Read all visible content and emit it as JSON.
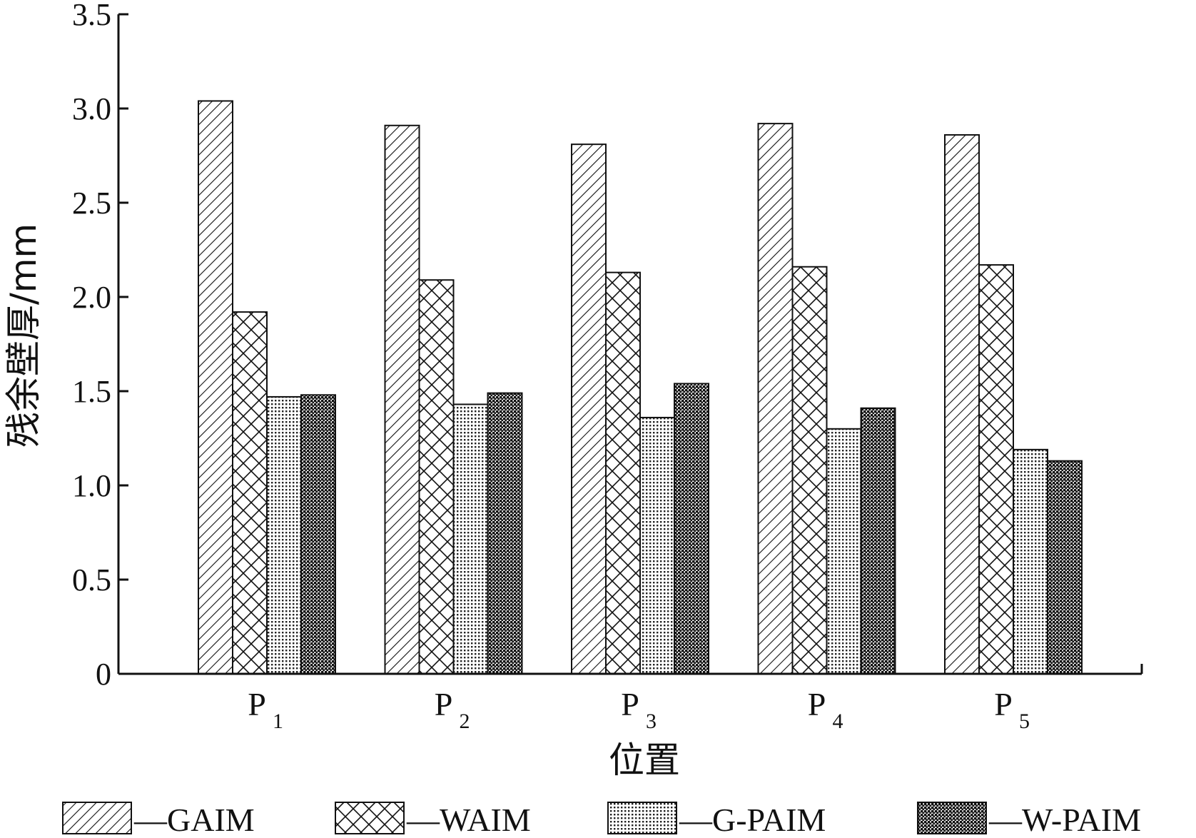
{
  "chart_data": {
    "type": "bar",
    "categories": [
      {
        "main": "P",
        "sub": "1"
      },
      {
        "main": "P",
        "sub": "2"
      },
      {
        "main": "P",
        "sub": "3"
      },
      {
        "main": "P",
        "sub": "4"
      },
      {
        "main": "P",
        "sub": "5"
      }
    ],
    "series": [
      {
        "name": "—GAIM",
        "pattern": "diagonal-hatch",
        "values": [
          3.04,
          2.91,
          2.81,
          2.92,
          2.86
        ]
      },
      {
        "name": "—WAIM",
        "pattern": "cross-hatch",
        "values": [
          1.92,
          2.09,
          2.13,
          2.16,
          2.17
        ]
      },
      {
        "name": "—G-PAIM",
        "pattern": "fine-dots",
        "values": [
          1.47,
          1.43,
          1.36,
          1.3,
          1.19
        ]
      },
      {
        "name": "—W-PAIM",
        "pattern": "dense-dots",
        "values": [
          1.48,
          1.49,
          1.54,
          1.41,
          1.13
        ]
      }
    ],
    "xlabel": "位置",
    "ylabel": "残余壁厚/mm",
    "ylim": [
      0,
      3.5
    ],
    "yticks": [
      "0",
      "0.5",
      "1.0",
      "1.5",
      "2.0",
      "2.5",
      "3.0",
      "3.5"
    ],
    "grid": false,
    "legend": "bottom"
  },
  "colors": {
    "ink": "#111111",
    "background": "#ffffff"
  }
}
